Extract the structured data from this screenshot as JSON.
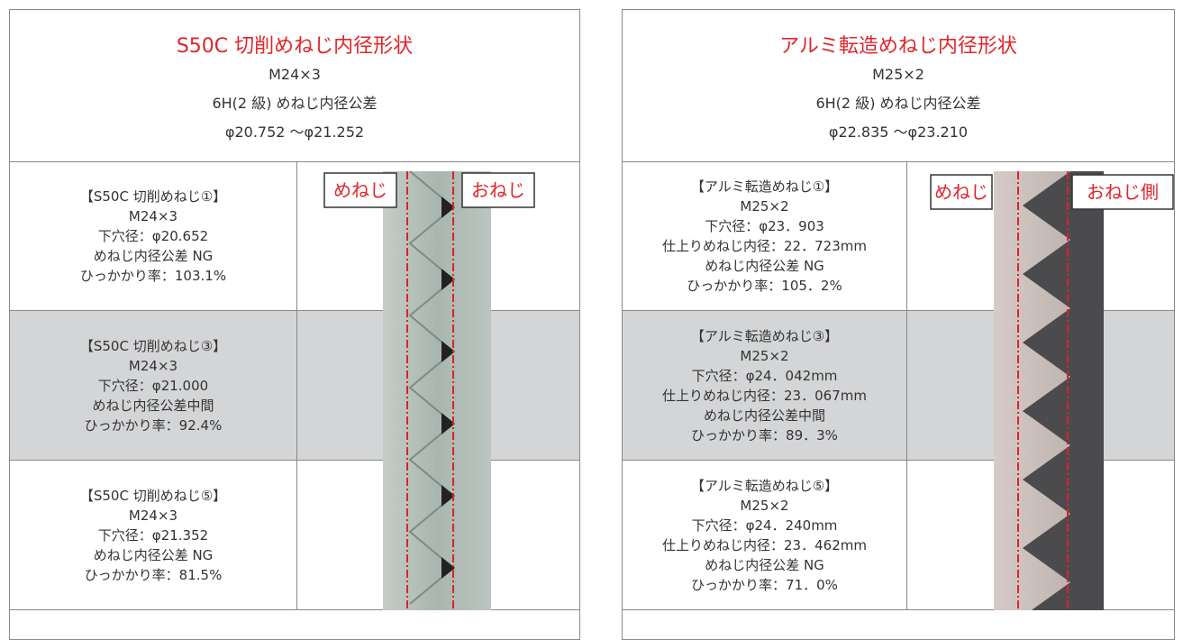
{
  "panels": [
    {
      "title": "S50C 切削めねじ内径形状",
      "lines": [
        "M24×3",
        "6H(2 級) めねじ内径公差",
        "φ20.752 ～φ21.252"
      ],
      "labels": [
        "めねじ",
        "おねじ"
      ],
      "rows": [
        {
          "lines": [
            "【S50C 切削めねじ①】",
            "M24×3",
            "下穴径：φ20.652",
            "めねじ内径公差 NG",
            "ひっかかり率：103.1%"
          ]
        },
        {
          "lines": [
            "【S50C 切削めねじ③】",
            "M24×3",
            "下穴径：φ21.000",
            "めねじ内径公差中間",
            "ひっかかり率：92.4%"
          ]
        },
        {
          "lines": [
            "【S50C 切削めねじ⑤】",
            "M24×3",
            "下穴径：φ21.352",
            "めねじ内径公差 NG",
            "ひっかかり率：81.5%"
          ]
        }
      ]
    },
    {
      "title": "アルミ転造めねじ内径形状",
      "lines": [
        "M25×2",
        "6H(2 級) めねじ内径公差",
        "φ22.835 ～φ23.210"
      ],
      "labels": [
        "めねじ",
        "おねじ側"
      ],
      "rows": [
        {
          "lines": [
            "【アルミ転造めねじ①】",
            "M25×2",
            "下穴径：φ23．903",
            "仕上りめねじ内径：22．723mm",
            "めねじ内径公差 NG",
            "ひっかかり率：105．2%"
          ]
        },
        {
          "lines": [
            "【アルミ転造めねじ③】",
            "M25×2",
            "下穴径：φ24．042mm",
            "仕上りめねじ内径：23．067mm",
            "めねじ内径公差中間",
            "ひっかかり率：89．3%"
          ]
        },
        {
          "lines": [
            "【アルミ転造めねじ⑤】",
            "M25×2",
            "下穴径：φ24．240mm",
            "仕上りめねじ内径：23．462mm",
            "めねじ内径公差 NG",
            "ひっかかり率：71．0%"
          ]
        }
      ]
    }
  ]
}
